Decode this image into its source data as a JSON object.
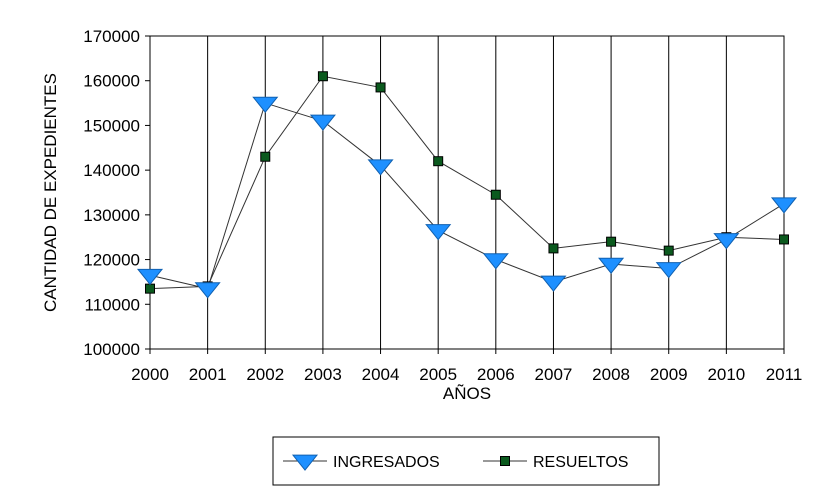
{
  "chart_data": {
    "type": "line",
    "title": "",
    "xlabel": "AÑOS",
    "ylabel": "CANTIDAD DE EXPEDIENTES",
    "x": [
      "2000",
      "2001",
      "2002",
      "2003",
      "2004",
      "2005",
      "2006",
      "2007",
      "2008",
      "2009",
      "2010",
      "2011"
    ],
    "ylim": [
      100000,
      170000
    ],
    "yticks": [
      100000,
      110000,
      120000,
      130000,
      140000,
      150000,
      160000,
      170000
    ],
    "grid": {
      "vertical": true,
      "horizontal": false
    },
    "legend": "bottom-center",
    "series": [
      {
        "name": "INGRESADOS",
        "marker": "triangle-down",
        "color": "#1e90ff",
        "values": [
          116500,
          113500,
          155000,
          151000,
          141000,
          126500,
          120000,
          115000,
          119000,
          118000,
          124500,
          132500
        ]
      },
      {
        "name": "RESUELTOS",
        "marker": "square",
        "color": "#0b5a1e",
        "values": [
          113500,
          114000,
          143000,
          161000,
          158500,
          142000,
          134500,
          122500,
          124000,
          122000,
          125000,
          124500
        ]
      }
    ]
  }
}
